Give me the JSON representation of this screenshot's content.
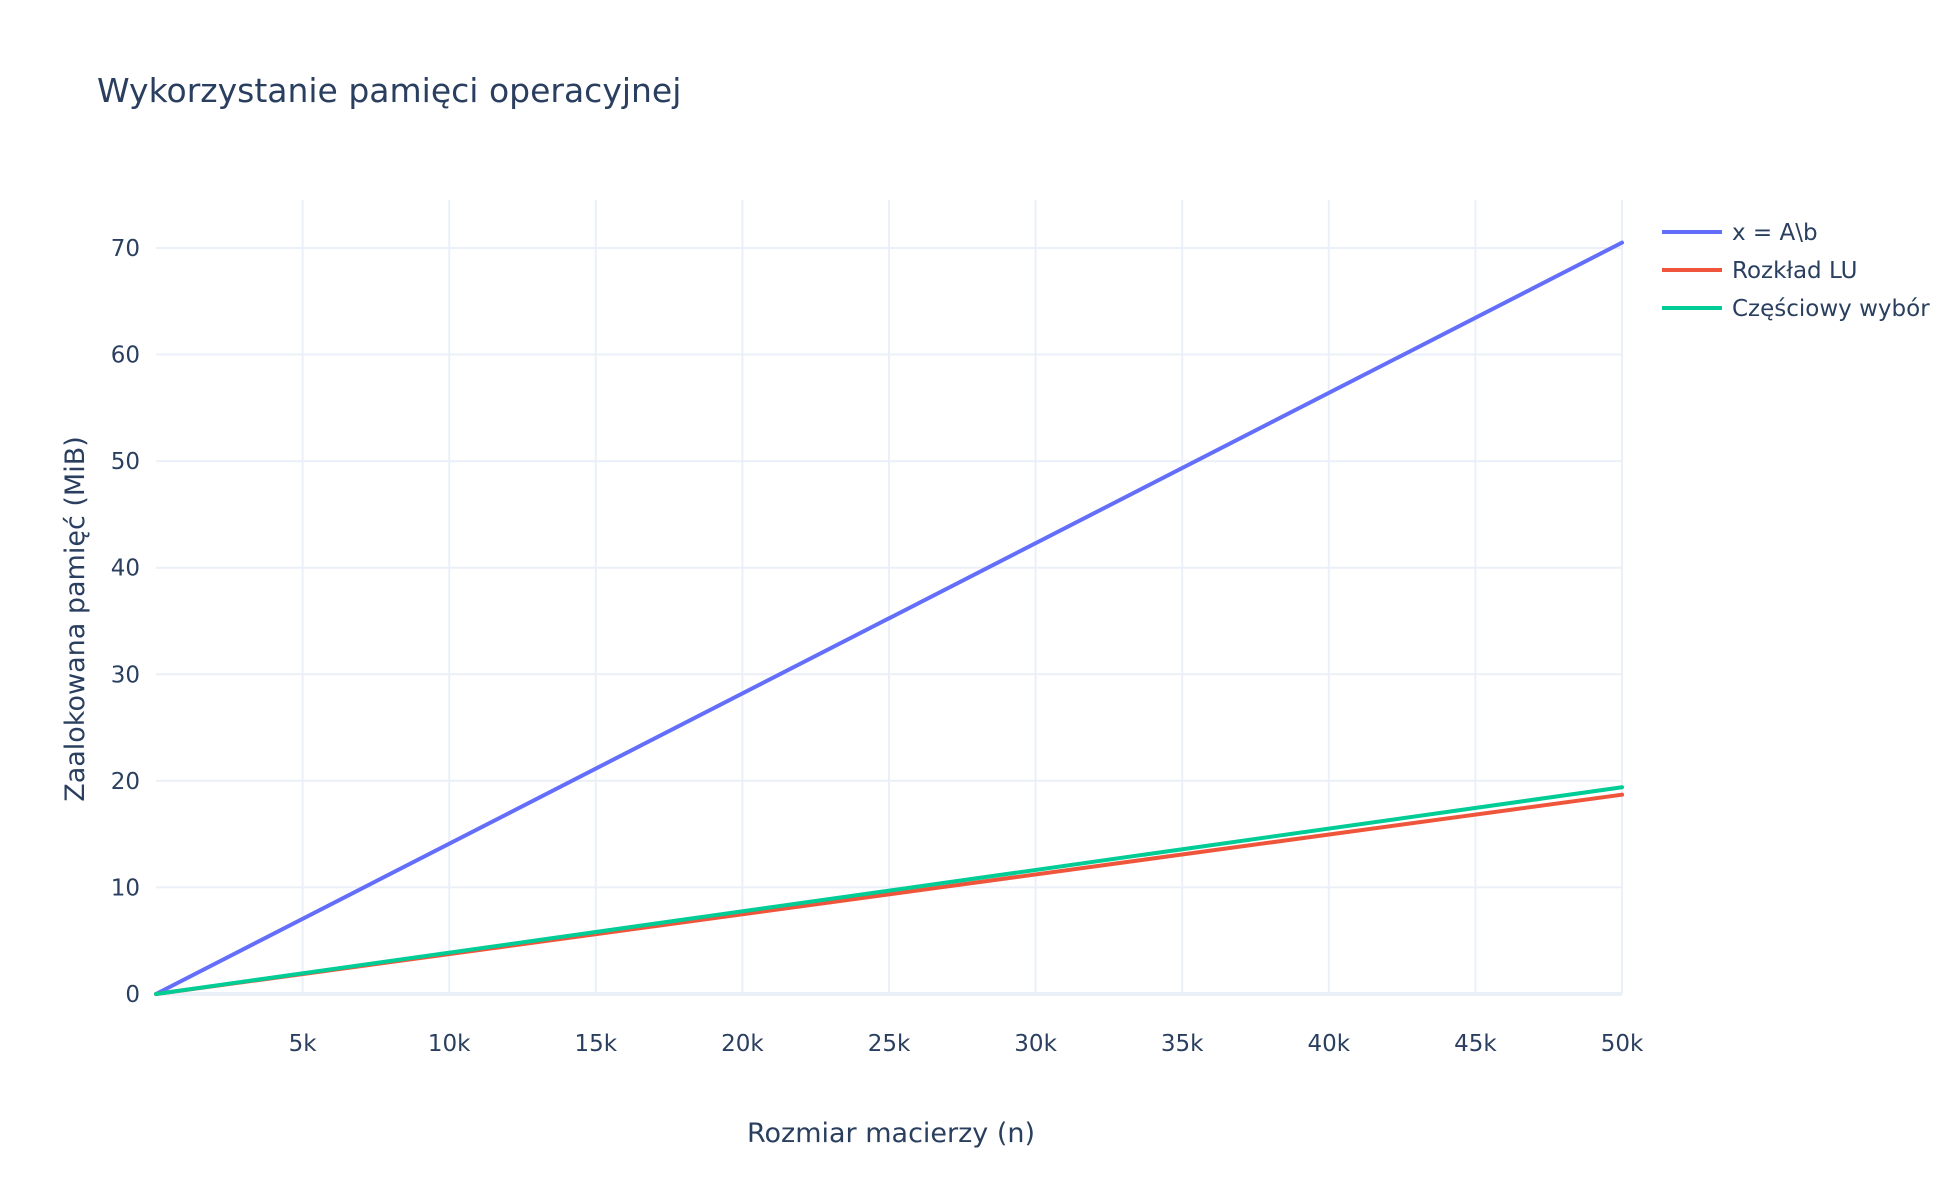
{
  "chart_data": {
    "type": "line",
    "title": "Wykorzystanie pamięci operacyjnej",
    "xlabel": "Rozmiar macierzy (n)",
    "ylabel": "Zaalokowana pamięć (MiB)",
    "xlim": [
      0,
      50000
    ],
    "ylim": [
      0,
      74.5
    ],
    "grid": true,
    "legend_position": "top-right",
    "x_ticks": [
      {
        "value": 5000,
        "label": "5k"
      },
      {
        "value": 10000,
        "label": "10k"
      },
      {
        "value": 15000,
        "label": "15k"
      },
      {
        "value": 20000,
        "label": "20k"
      },
      {
        "value": 25000,
        "label": "25k"
      },
      {
        "value": 30000,
        "label": "30k"
      },
      {
        "value": 35000,
        "label": "35k"
      },
      {
        "value": 40000,
        "label": "40k"
      },
      {
        "value": 45000,
        "label": "45k"
      },
      {
        "value": 50000,
        "label": "50k"
      }
    ],
    "y_ticks": [
      {
        "value": 0,
        "label": "0"
      },
      {
        "value": 10,
        "label": "10"
      },
      {
        "value": 20,
        "label": "20"
      },
      {
        "value": 30,
        "label": "30"
      },
      {
        "value": 40,
        "label": "40"
      },
      {
        "value": 50,
        "label": "50"
      },
      {
        "value": 60,
        "label": "60"
      },
      {
        "value": 70,
        "label": "70"
      }
    ],
    "x": [
      0,
      50000
    ],
    "series": [
      {
        "name": "x = A\\b",
        "color": "#636efa",
        "values": [
          0,
          70.5
        ]
      },
      {
        "name": "Rozkład LU",
        "color": "#ef553b",
        "values": [
          0,
          18.7
        ]
      },
      {
        "name": "Częściowy wybór",
        "color": "#00cc96",
        "values": [
          0,
          19.4
        ]
      }
    ]
  }
}
